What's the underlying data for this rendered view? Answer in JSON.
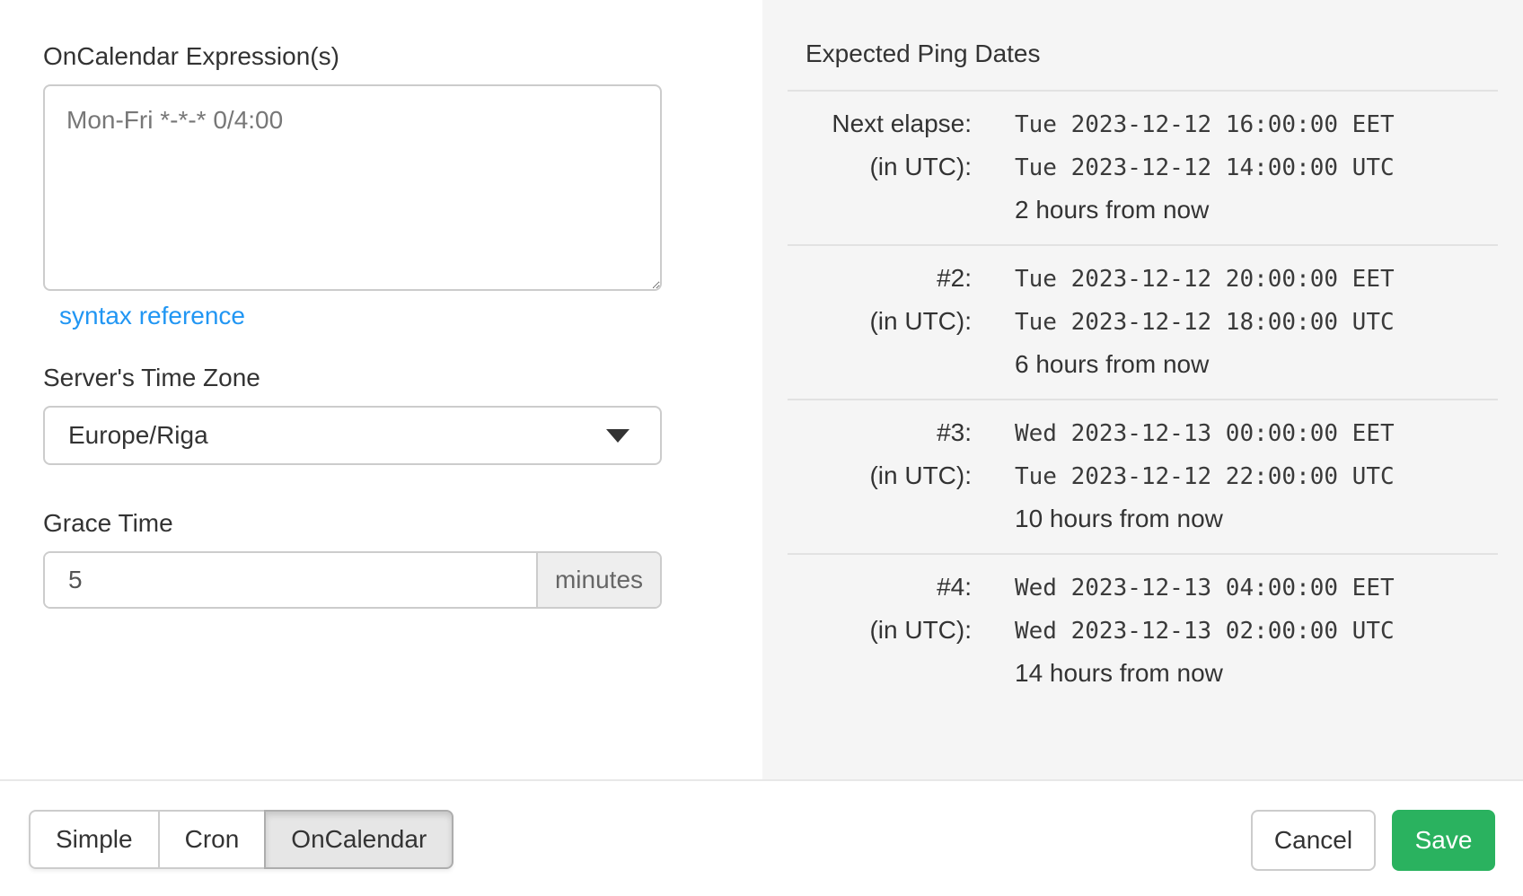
{
  "form": {
    "expression_label": "OnCalendar Expression(s)",
    "expression_value": "Mon-Fri *-*-* 0/4:00",
    "syntax_reference_label": "syntax reference",
    "timezone_label": "Server's Time Zone",
    "timezone_value": "Europe/Riga",
    "grace_label": "Grace Time",
    "grace_value": "5",
    "grace_unit": "minutes"
  },
  "ping_dates": {
    "title": "Expected Ping Dates",
    "utc_label": "(in UTC):",
    "entries": [
      {
        "label": "Next elapse:",
        "local": "Tue 2023-12-12 16:00:00 EET",
        "utc": "Tue 2023-12-12 14:00:00 UTC",
        "relative": "2 hours from now"
      },
      {
        "label": "#2:",
        "local": "Tue 2023-12-12 20:00:00 EET",
        "utc": "Tue 2023-12-12 18:00:00 UTC",
        "relative": "6 hours from now"
      },
      {
        "label": "#3:",
        "local": "Wed 2023-12-13 00:00:00 EET",
        "utc": "Tue 2023-12-12 22:00:00 UTC",
        "relative": "10 hours from now"
      },
      {
        "label": "#4:",
        "local": "Wed 2023-12-13 04:00:00 EET",
        "utc": "Wed 2023-12-13 02:00:00 UTC",
        "relative": "14 hours from now"
      }
    ]
  },
  "footer": {
    "schedule_tabs": [
      {
        "label": "Simple",
        "active": false
      },
      {
        "label": "Cron",
        "active": false
      },
      {
        "label": "OnCalendar",
        "active": true
      }
    ],
    "cancel_label": "Cancel",
    "save_label": "Save"
  },
  "colors": {
    "accent_green": "#2ab25f",
    "link_blue": "#2196f3",
    "panel_gray": "#f5f5f5"
  }
}
